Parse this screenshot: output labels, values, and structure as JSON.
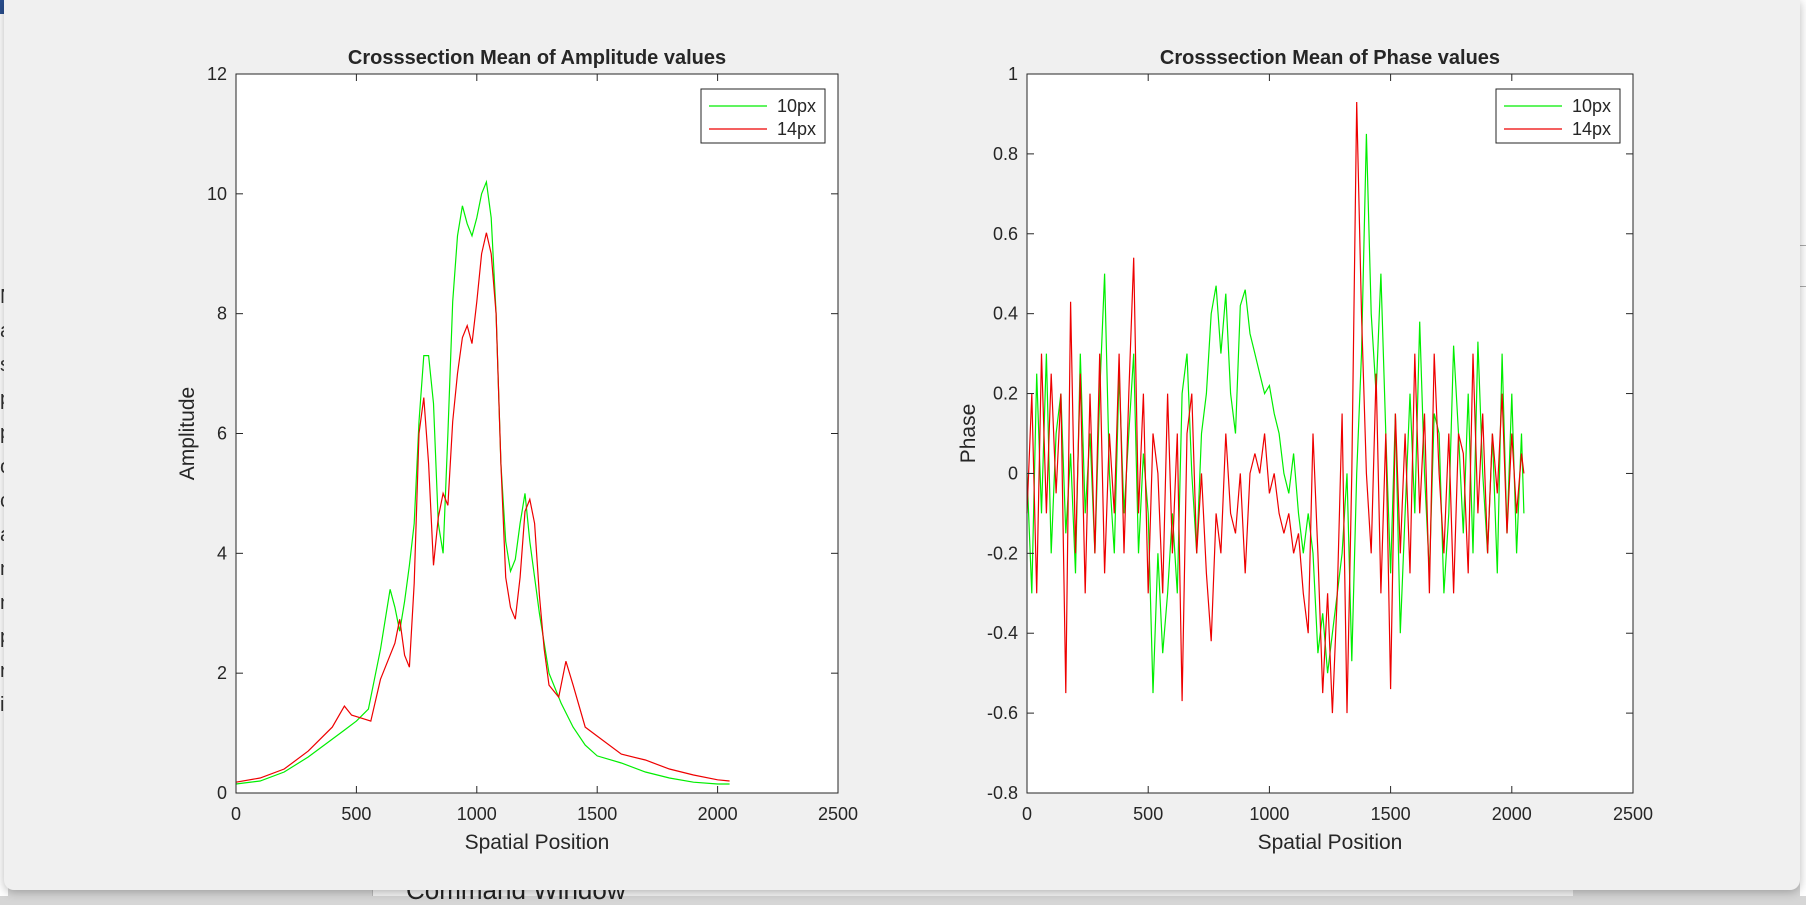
{
  "background": {
    "command_window_title": "Command Window",
    "left_strip_letters": [
      "N",
      "a",
      "s",
      "p",
      "p",
      "o",
      "c",
      "a",
      "n",
      "n",
      "p",
      "r",
      "i"
    ]
  },
  "chart_data": [
    {
      "type": "line",
      "title": "Crosssection Mean of Amplitude values",
      "xlabel": "Spatial Position",
      "ylabel": "Amplitude",
      "xlim": [
        0,
        2500
      ],
      "ylim": [
        0,
        12
      ],
      "xticks": [
        "0",
        "500",
        "1000",
        "1500",
        "2000",
        "2500"
      ],
      "yticks": [
        "0",
        "2",
        "4",
        "6",
        "8",
        "10",
        "12"
      ],
      "legend_position": "top-right",
      "series": [
        {
          "name": "10px",
          "color": "#00ee00",
          "x": [
            0,
            100,
            200,
            300,
            400,
            450,
            500,
            550,
            600,
            620,
            640,
            660,
            680,
            700,
            720,
            740,
            760,
            780,
            800,
            820,
            840,
            860,
            880,
            900,
            920,
            940,
            960,
            980,
            1000,
            1020,
            1040,
            1060,
            1080,
            1100,
            1120,
            1140,
            1160,
            1180,
            1200,
            1220,
            1240,
            1260,
            1280,
            1300,
            1350,
            1400,
            1450,
            1500,
            1600,
            1700,
            1800,
            1900,
            2000,
            2050
          ],
          "y": [
            0.15,
            0.2,
            0.35,
            0.6,
            0.9,
            1.05,
            1.2,
            1.4,
            2.4,
            2.9,
            3.4,
            3.1,
            2.7,
            3.2,
            3.8,
            4.5,
            6.2,
            7.3,
            7.3,
            6.5,
            4.5,
            4.0,
            6.0,
            8.2,
            9.3,
            9.8,
            9.5,
            9.3,
            9.6,
            10.0,
            10.2,
            9.6,
            8.0,
            5.5,
            4.2,
            3.7,
            3.9,
            4.5,
            5.0,
            4.2,
            3.6,
            3.0,
            2.5,
            2.0,
            1.5,
            1.1,
            0.8,
            0.62,
            0.5,
            0.35,
            0.25,
            0.18,
            0.15,
            0.15
          ]
        },
        {
          "name": "14px",
          "color": "#ee0000",
          "x": [
            0,
            100,
            200,
            300,
            400,
            450,
            480,
            520,
            560,
            600,
            620,
            640,
            660,
            680,
            700,
            720,
            740,
            760,
            780,
            800,
            820,
            840,
            860,
            880,
            900,
            920,
            940,
            960,
            980,
            1000,
            1020,
            1040,
            1060,
            1080,
            1100,
            1120,
            1140,
            1160,
            1180,
            1200,
            1220,
            1240,
            1260,
            1280,
            1300,
            1340,
            1370,
            1400,
            1450,
            1500,
            1600,
            1700,
            1800,
            1900,
            2000,
            2050
          ],
          "y": [
            0.18,
            0.25,
            0.4,
            0.7,
            1.1,
            1.45,
            1.3,
            1.25,
            1.2,
            1.9,
            2.1,
            2.3,
            2.5,
            2.9,
            2.3,
            2.1,
            3.5,
            6.0,
            6.6,
            5.5,
            3.8,
            4.6,
            5.0,
            4.8,
            6.2,
            7.0,
            7.6,
            7.8,
            7.5,
            8.2,
            9.0,
            9.35,
            9.0,
            8.0,
            5.5,
            3.6,
            3.1,
            2.9,
            3.6,
            4.7,
            4.9,
            4.5,
            3.3,
            2.4,
            1.8,
            1.6,
            2.2,
            1.8,
            1.1,
            0.95,
            0.65,
            0.55,
            0.4,
            0.3,
            0.22,
            0.2
          ]
        }
      ]
    },
    {
      "type": "line",
      "title": "Crosssection Mean of Phase values",
      "xlabel": "Spatial Position",
      "ylabel": "Phase",
      "xlim": [
        0,
        2500
      ],
      "ylim": [
        -0.8,
        1
      ],
      "xticks": [
        "0",
        "500",
        "1000",
        "1500",
        "2000",
        "2500"
      ],
      "yticks": [
        "-0.8",
        "-0.6",
        "-0.4",
        "-0.2",
        "0",
        "0.2",
        "0.4",
        "0.6",
        "0.8",
        "1"
      ],
      "legend_position": "top-right",
      "series": [
        {
          "name": "10px",
          "color": "#00ee00",
          "x": [
            0,
            20,
            40,
            60,
            80,
            100,
            120,
            140,
            160,
            180,
            200,
            220,
            240,
            260,
            280,
            300,
            320,
            340,
            360,
            380,
            400,
            420,
            440,
            460,
            480,
            500,
            520,
            540,
            560,
            580,
            600,
            620,
            640,
            660,
            680,
            700,
            720,
            740,
            760,
            780,
            800,
            820,
            840,
            860,
            880,
            900,
            920,
            940,
            960,
            980,
            1000,
            1020,
            1040,
            1060,
            1080,
            1100,
            1120,
            1140,
            1160,
            1180,
            1200,
            1220,
            1240,
            1260,
            1280,
            1300,
            1320,
            1340,
            1360,
            1380,
            1400,
            1420,
            1440,
            1460,
            1480,
            1500,
            1520,
            1540,
            1560,
            1580,
            1600,
            1620,
            1640,
            1660,
            1680,
            1700,
            1720,
            1740,
            1760,
            1780,
            1800,
            1820,
            1840,
            1860,
            1880,
            1900,
            1920,
            1940,
            1960,
            1980,
            2000,
            2020,
            2040,
            2050
          ],
          "y": [
            0.0,
            -0.3,
            0.25,
            -0.1,
            0.3,
            -0.2,
            0.1,
            0.2,
            -0.15,
            0.05,
            -0.25,
            0.3,
            -0.1,
            0.1,
            -0.2,
            0.2,
            0.5,
            0.0,
            -0.2,
            0.25,
            -0.1,
            0.1,
            0.3,
            -0.2,
            0.05,
            -0.1,
            -0.55,
            -0.2,
            -0.45,
            -0.3,
            -0.1,
            -0.3,
            0.2,
            0.3,
            0.0,
            -0.2,
            0.1,
            0.2,
            0.4,
            0.47,
            0.3,
            0.45,
            0.2,
            0.1,
            0.42,
            0.46,
            0.35,
            0.3,
            0.25,
            0.2,
            0.22,
            0.15,
            0.1,
            0.0,
            -0.05,
            0.05,
            -0.1,
            -0.2,
            -0.1,
            -0.2,
            -0.45,
            -0.35,
            -0.5,
            -0.4,
            -0.3,
            -0.2,
            0.0,
            -0.47,
            0.0,
            0.3,
            0.85,
            0.4,
            0.2,
            0.5,
            0.1,
            -0.25,
            0.15,
            -0.4,
            -0.1,
            0.2,
            -0.1,
            0.38,
            0.0,
            -0.25,
            0.15,
            0.1,
            -0.3,
            -0.1,
            0.32,
            0.1,
            -0.15,
            0.2,
            -0.2,
            0.33,
            0.0,
            -0.2,
            0.1,
            -0.25,
            0.3,
            -0.15,
            0.2,
            -0.2,
            0.1,
            -0.1
          ]
        },
        {
          "name": "14px",
          "color": "#ee0000",
          "x": [
            0,
            20,
            40,
            60,
            80,
            100,
            120,
            140,
            160,
            180,
            200,
            220,
            240,
            260,
            280,
            300,
            320,
            340,
            360,
            380,
            400,
            420,
            440,
            460,
            480,
            500,
            520,
            540,
            560,
            580,
            600,
            620,
            640,
            660,
            680,
            700,
            720,
            740,
            760,
            780,
            800,
            820,
            840,
            860,
            880,
            900,
            920,
            940,
            960,
            980,
            1000,
            1020,
            1040,
            1060,
            1080,
            1100,
            1120,
            1140,
            1160,
            1180,
            1200,
            1220,
            1240,
            1260,
            1280,
            1300,
            1320,
            1340,
            1360,
            1380,
            1400,
            1420,
            1440,
            1460,
            1480,
            1500,
            1520,
            1540,
            1560,
            1580,
            1600,
            1620,
            1640,
            1660,
            1680,
            1700,
            1720,
            1740,
            1760,
            1780,
            1800,
            1820,
            1840,
            1860,
            1880,
            1900,
            1920,
            1940,
            1960,
            1980,
            2000,
            2020,
            2040,
            2050
          ],
          "y": [
            -0.1,
            0.2,
            -0.3,
            0.3,
            -0.1,
            0.25,
            -0.05,
            0.2,
            -0.55,
            0.43,
            -0.2,
            0.25,
            -0.3,
            0.2,
            -0.2,
            0.3,
            -0.25,
            0.1,
            -0.1,
            0.3,
            -0.2,
            0.2,
            0.54,
            -0.1,
            0.2,
            -0.3,
            0.1,
            0.0,
            -0.3,
            0.2,
            -0.2,
            0.1,
            -0.57,
            0.1,
            0.2,
            -0.2,
            0.0,
            -0.25,
            -0.42,
            -0.1,
            -0.2,
            0.1,
            -0.1,
            -0.15,
            0.0,
            -0.25,
            0.0,
            0.05,
            0.0,
            0.1,
            -0.05,
            0.0,
            -0.1,
            -0.15,
            -0.1,
            -0.2,
            -0.15,
            -0.3,
            -0.4,
            0.1,
            -0.2,
            -0.55,
            -0.3,
            -0.6,
            -0.3,
            0.15,
            -0.6,
            0.0,
            0.93,
            0.4,
            0.0,
            -0.2,
            0.25,
            -0.3,
            0.1,
            -0.54,
            0.15,
            -0.2,
            0.1,
            -0.25,
            0.3,
            -0.1,
            0.15,
            -0.3,
            0.3,
            0.0,
            -0.2,
            0.1,
            -0.3,
            0.1,
            0.05,
            -0.25,
            0.3,
            -0.1,
            0.15,
            -0.2,
            0.1,
            -0.05,
            0.2,
            -0.15,
            0.1,
            -0.1,
            0.05,
            0.0
          ]
        }
      ]
    }
  ]
}
